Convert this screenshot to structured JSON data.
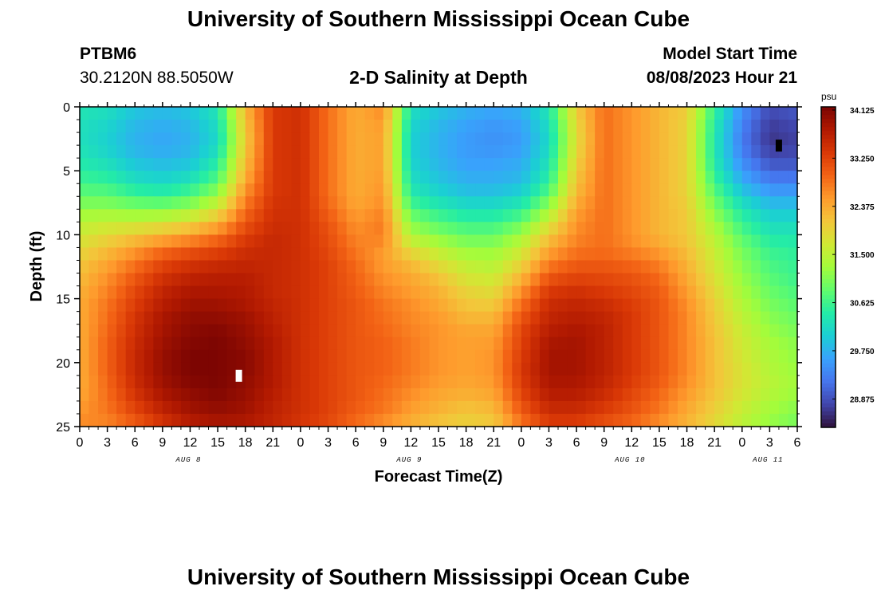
{
  "header": {
    "title": "University of Southern Mississippi Ocean Cube",
    "station_id": "PTBM6",
    "station_coords": "30.2120N  88.5050W",
    "subtitle": "2-D Salinity at Depth",
    "model_start_label": "Model Start Time",
    "model_start_value": "08/08/2023 Hour 21"
  },
  "footer": {
    "title": "University of Southern Mississippi Ocean Cube"
  },
  "chart_data": {
    "type": "heatmap",
    "title": "2-D Salinity at Depth",
    "xlabel": "Forecast Time(Z)",
    "ylabel": "Depth (ft)",
    "x_range_hours": [
      0,
      78
    ],
    "y_range_ft": [
      0,
      25
    ],
    "y_ticks": [
      "0",
      "5",
      "10",
      "15",
      "20",
      "25"
    ],
    "y_tick_values": [
      0,
      5,
      10,
      15,
      20,
      25
    ],
    "x_ticks": [
      {
        "hour": 0,
        "label": "0"
      },
      {
        "hour": 3,
        "label": "3"
      },
      {
        "hour": 6,
        "label": "6"
      },
      {
        "hour": 9,
        "label": "9"
      },
      {
        "hour": 12,
        "label": "12"
      },
      {
        "hour": 15,
        "label": "15"
      },
      {
        "hour": 18,
        "label": "18"
      },
      {
        "hour": 21,
        "label": "21"
      },
      {
        "hour": 24,
        "label": "0"
      },
      {
        "hour": 27,
        "label": "3"
      },
      {
        "hour": 30,
        "label": "6"
      },
      {
        "hour": 33,
        "label": "9"
      },
      {
        "hour": 36,
        "label": "12"
      },
      {
        "hour": 39,
        "label": "15"
      },
      {
        "hour": 42,
        "label": "18"
      },
      {
        "hour": 45,
        "label": "21"
      },
      {
        "hour": 48,
        "label": "0"
      },
      {
        "hour": 51,
        "label": "3"
      },
      {
        "hour": 54,
        "label": "6"
      },
      {
        "hour": 57,
        "label": "9"
      },
      {
        "hour": 60,
        "label": "12"
      },
      {
        "hour": 63,
        "label": "15"
      },
      {
        "hour": 66,
        "label": "18"
      },
      {
        "hour": 69,
        "label": "21"
      },
      {
        "hour": 72,
        "label": "0"
      },
      {
        "hour": 75,
        "label": "3"
      },
      {
        "hour": 78,
        "label": "6"
      }
    ],
    "day_labels": [
      {
        "hour": 12,
        "label": "AUG 8"
      },
      {
        "hour": 36,
        "label": "AUG 9"
      },
      {
        "hour": 60,
        "label": "AUG 10"
      },
      {
        "hour": 75,
        "label": "AUG 11"
      }
    ],
    "colorbar": {
      "unit": "psu",
      "min": 28.3,
      "max": 34.125,
      "ticks": [
        "34.125",
        "33.250",
        "32.375",
        "31.500",
        "30.625",
        "29.750",
        "28.875"
      ],
      "tick_values": [
        34.125,
        33.25,
        32.375,
        31.5,
        30.625,
        29.75,
        28.875
      ]
    },
    "salinity_psu_by_depth": {
      "note": "rows are depths 0..25 ft (step 1 ft); columns are forecast hours 0..78 sampled every 3 h",
      "hours": [
        0,
        3,
        6,
        9,
        12,
        15,
        18,
        21,
        24,
        27,
        30,
        33,
        36,
        39,
        42,
        45,
        48,
        51,
        54,
        57,
        60,
        63,
        66,
        69,
        72,
        75,
        78
      ],
      "rows": [
        [
          30.3,
          30.2,
          29.9,
          29.8,
          29.9,
          30.3,
          32.2,
          33.3,
          33.4,
          32.8,
          32.3,
          32.6,
          30.2,
          29.9,
          29.7,
          29.6,
          29.7,
          30.3,
          32.0,
          32.8,
          32.5,
          32.2,
          32.0,
          30.5,
          29.4,
          28.8,
          28.9
        ],
        [
          30.2,
          30.1,
          29.8,
          29.7,
          29.8,
          30.2,
          32.1,
          33.3,
          33.4,
          32.8,
          32.3,
          32.5,
          30.1,
          29.8,
          29.6,
          29.5,
          29.6,
          30.2,
          31.9,
          32.8,
          32.5,
          32.2,
          31.9,
          30.4,
          29.3,
          28.7,
          28.8
        ],
        [
          30.2,
          30.0,
          29.7,
          29.6,
          29.7,
          30.1,
          32.0,
          33.3,
          33.4,
          32.8,
          32.3,
          32.4,
          30.0,
          29.7,
          29.5,
          29.4,
          29.5,
          30.1,
          31.8,
          32.8,
          32.5,
          32.2,
          31.9,
          30.3,
          29.2,
          28.6,
          28.7
        ],
        [
          30.2,
          30.0,
          29.7,
          29.6,
          29.7,
          30.1,
          32.0,
          33.3,
          33.4,
          32.8,
          32.3,
          32.4,
          30.0,
          29.7,
          29.5,
          29.4,
          29.5,
          30.1,
          31.8,
          32.8,
          32.5,
          32.2,
          31.9,
          30.3,
          29.2,
          28.6,
          28.7
        ],
        [
          30.3,
          30.1,
          29.8,
          29.7,
          29.8,
          30.3,
          32.1,
          33.3,
          33.4,
          32.8,
          32.3,
          32.4,
          30.0,
          29.7,
          29.5,
          29.5,
          29.6,
          30.2,
          31.9,
          32.8,
          32.5,
          32.2,
          31.9,
          30.3,
          29.3,
          28.8,
          28.8
        ],
        [
          30.4,
          30.3,
          30.0,
          29.9,
          30.0,
          30.5,
          32.2,
          33.3,
          33.4,
          32.8,
          32.3,
          32.4,
          30.1,
          29.8,
          29.6,
          29.6,
          29.7,
          30.3,
          32.0,
          32.8,
          32.5,
          32.2,
          31.9,
          30.4,
          29.5,
          29.0,
          29.0
        ],
        [
          30.6,
          30.5,
          30.2,
          30.1,
          30.3,
          30.8,
          32.4,
          33.3,
          33.4,
          32.8,
          32.3,
          32.5,
          30.2,
          29.9,
          29.7,
          29.7,
          29.8,
          30.5,
          32.1,
          32.8,
          32.5,
          32.2,
          31.9,
          30.6,
          29.7,
          29.3,
          29.3
        ],
        [
          30.8,
          30.8,
          30.6,
          30.5,
          30.7,
          31.2,
          32.6,
          33.3,
          33.4,
          32.8,
          32.3,
          32.5,
          30.4,
          30.1,
          29.9,
          29.9,
          30.1,
          30.8,
          32.2,
          32.8,
          32.5,
          32.2,
          31.9,
          30.8,
          30.0,
          29.6,
          29.6
        ],
        [
          31.1,
          31.1,
          31.0,
          31.0,
          31.2,
          31.7,
          32.8,
          33.4,
          33.4,
          32.9,
          32.4,
          32.6,
          30.7,
          30.4,
          30.2,
          30.2,
          30.4,
          31.2,
          32.4,
          32.8,
          32.5,
          32.2,
          32.0,
          31.0,
          30.3,
          29.9,
          29.9
        ],
        [
          31.4,
          31.5,
          31.5,
          31.6,
          31.8,
          32.2,
          33.0,
          33.4,
          33.4,
          33.0,
          32.5,
          32.7,
          31.0,
          30.7,
          30.5,
          30.5,
          30.8,
          31.6,
          32.5,
          32.8,
          32.5,
          32.2,
          32.0,
          31.2,
          30.5,
          30.1,
          30.1
        ],
        [
          31.6,
          31.8,
          32.0,
          32.2,
          32.4,
          32.7,
          33.2,
          33.5,
          33.4,
          33.1,
          32.6,
          32.7,
          31.3,
          31.0,
          30.8,
          30.8,
          31.2,
          32.0,
          32.6,
          32.8,
          32.5,
          32.2,
          32.0,
          31.4,
          30.7,
          30.3,
          30.3
        ],
        [
          31.8,
          32.1,
          32.4,
          32.7,
          32.9,
          33.1,
          33.4,
          33.5,
          33.4,
          33.1,
          32.7,
          32.5,
          31.7,
          31.4,
          31.1,
          31.1,
          31.5,
          32.3,
          32.7,
          32.8,
          32.6,
          32.4,
          32.1,
          31.5,
          30.9,
          30.5,
          30.4
        ],
        [
          32.0,
          32.3,
          32.7,
          33.1,
          33.3,
          33.4,
          33.5,
          33.5,
          33.4,
          33.2,
          32.8,
          32.4,
          32.1,
          31.7,
          31.4,
          31.3,
          31.8,
          32.6,
          32.9,
          32.9,
          32.8,
          32.6,
          32.2,
          31.6,
          31.0,
          30.6,
          30.5
        ],
        [
          32.1,
          32.5,
          32.9,
          33.3,
          33.5,
          33.6,
          33.6,
          33.5,
          33.4,
          33.2,
          32.9,
          32.5,
          32.3,
          32.0,
          31.6,
          31.5,
          32.1,
          32.9,
          33.1,
          33.1,
          33.0,
          32.8,
          32.3,
          31.7,
          31.1,
          30.7,
          30.5
        ],
        [
          32.2,
          32.6,
          33.1,
          33.5,
          33.7,
          33.7,
          33.7,
          33.5,
          33.4,
          33.2,
          32.9,
          32.6,
          32.4,
          32.2,
          31.8,
          31.7,
          32.4,
          33.2,
          33.3,
          33.2,
          33.1,
          32.9,
          32.4,
          31.8,
          31.2,
          30.8,
          30.6
        ],
        [
          32.3,
          32.7,
          33.2,
          33.6,
          33.8,
          33.8,
          33.7,
          33.5,
          33.4,
          33.2,
          33.0,
          32.7,
          32.5,
          32.3,
          32.0,
          31.9,
          32.7,
          33.4,
          33.5,
          33.4,
          33.2,
          33.0,
          32.5,
          31.9,
          31.3,
          30.9,
          30.7
        ],
        [
          32.3,
          32.8,
          33.3,
          33.7,
          33.9,
          33.9,
          33.8,
          33.6,
          33.4,
          33.2,
          33.0,
          32.8,
          32.6,
          32.4,
          32.1,
          32.1,
          32.9,
          33.5,
          33.6,
          33.5,
          33.3,
          33.0,
          32.6,
          32.0,
          31.4,
          31.0,
          30.8
        ],
        [
          32.3,
          32.8,
          33.4,
          33.8,
          34.0,
          34.0,
          33.9,
          33.6,
          33.4,
          33.2,
          33.0,
          32.8,
          32.6,
          32.5,
          32.3,
          32.3,
          33.1,
          33.6,
          33.7,
          33.6,
          33.3,
          33.0,
          32.6,
          32.0,
          31.5,
          31.1,
          30.9
        ],
        [
          32.3,
          32.9,
          33.4,
          33.8,
          34.0,
          34.1,
          33.9,
          33.7,
          33.4,
          33.2,
          33.0,
          32.9,
          32.7,
          32.5,
          32.4,
          32.4,
          33.2,
          33.7,
          33.8,
          33.6,
          33.3,
          33.0,
          32.6,
          32.1,
          31.6,
          31.2,
          31.0
        ],
        [
          32.3,
          32.9,
          33.5,
          33.9,
          34.1,
          34.1,
          34.0,
          33.7,
          33.4,
          33.2,
          33.0,
          32.9,
          32.7,
          32.5,
          32.4,
          32.5,
          33.2,
          33.8,
          33.8,
          33.6,
          33.3,
          33.0,
          32.6,
          32.1,
          31.6,
          31.3,
          31.1
        ],
        [
          32.3,
          32.9,
          33.5,
          33.9,
          34.1,
          34.1,
          34.0,
          33.7,
          33.4,
          33.2,
          33.0,
          32.9,
          32.7,
          32.5,
          32.4,
          32.5,
          33.3,
          33.8,
          33.8,
          33.6,
          33.3,
          33.0,
          32.6,
          32.1,
          31.7,
          31.3,
          31.1
        ],
        [
          32.3,
          32.9,
          33.5,
          33.9,
          34.1,
          34.1,
          34.0,
          33.7,
          33.4,
          33.2,
          33.0,
          32.9,
          32.7,
          32.5,
          32.4,
          32.5,
          33.3,
          33.8,
          33.8,
          33.6,
          33.3,
          33.0,
          32.6,
          32.1,
          31.7,
          31.4,
          31.2
        ],
        [
          32.3,
          32.8,
          33.4,
          33.8,
          34.0,
          34.1,
          33.9,
          33.7,
          33.4,
          33.2,
          33.0,
          32.8,
          32.6,
          32.4,
          32.3,
          32.4,
          33.2,
          33.7,
          33.7,
          33.5,
          33.2,
          32.9,
          32.5,
          32.1,
          31.7,
          31.4,
          31.2
        ],
        [
          32.4,
          32.8,
          33.3,
          33.7,
          33.9,
          34.0,
          33.9,
          33.6,
          33.4,
          33.2,
          33.0,
          32.8,
          32.5,
          32.3,
          32.2,
          32.3,
          33.1,
          33.6,
          33.6,
          33.4,
          33.1,
          32.8,
          32.4,
          32.0,
          31.6,
          31.3,
          31.1
        ],
        [
          32.5,
          32.7,
          33.1,
          33.5,
          33.8,
          33.9,
          33.8,
          33.6,
          33.4,
          33.2,
          32.9,
          32.7,
          32.4,
          32.2,
          32.0,
          32.1,
          32.9,
          33.4,
          33.4,
          33.2,
          33.0,
          32.7,
          32.3,
          31.9,
          31.5,
          31.2,
          31.0
        ],
        [
          32.6,
          32.6,
          32.9,
          33.3,
          33.6,
          33.7,
          33.7,
          33.5,
          33.3,
          33.1,
          32.8,
          32.5,
          32.2,
          32.0,
          31.9,
          32.0,
          32.7,
          33.2,
          33.2,
          33.0,
          32.8,
          32.5,
          32.2,
          31.8,
          31.4,
          31.1,
          30.9
        ]
      ]
    },
    "markers": [
      {
        "hour": 17.3,
        "depth_ft": 21.0,
        "color": "#ffffff"
      },
      {
        "hour": 76.0,
        "depth_ft": 3.0,
        "color": "#000000"
      }
    ]
  },
  "colors": {
    "colormap": [
      "#30123b",
      "#4145ab",
      "#4675ed",
      "#39a2fc",
      "#1bcfd4",
      "#24eca6",
      "#61fc6c",
      "#a4fc3b",
      "#d1e834",
      "#f3c63a",
      "#fe9b2d",
      "#f36315",
      "#d93806",
      "#b11901",
      "#7a0402"
    ]
  }
}
